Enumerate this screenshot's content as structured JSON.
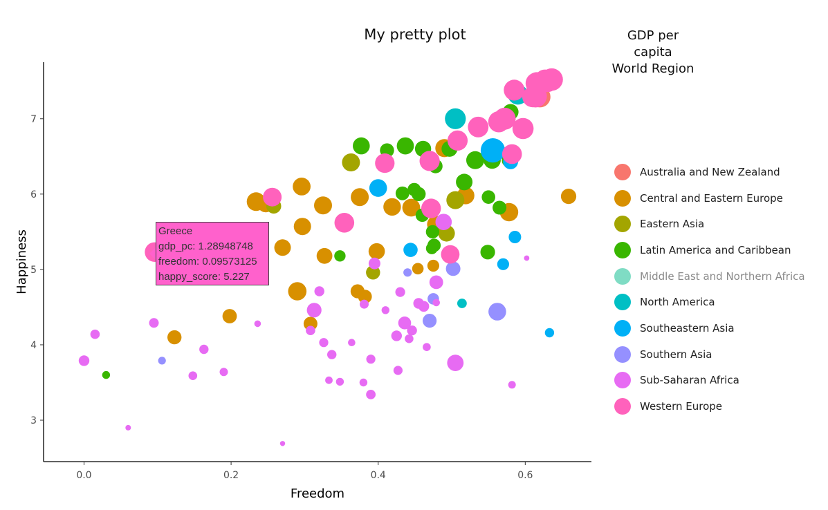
{
  "chart_data": {
    "type": "scatter",
    "title": "My pretty plot",
    "xlabel": "Freedom",
    "ylabel": "Happiness",
    "xlim": [
      -0.055,
      0.69
    ],
    "ylim": [
      2.45,
      7.75
    ],
    "x_ticks": [
      "0.0",
      "0.2",
      "0.4",
      "0.6"
    ],
    "x_tick_values": [
      0,
      0.2,
      0.4,
      0.6
    ],
    "y_ticks": [
      "3",
      "4",
      "5",
      "6",
      "7"
    ],
    "y_tick_values": [
      3,
      4,
      5,
      6,
      7
    ],
    "grid": false,
    "size_variable": "GDP per capita",
    "color_variable": "World Region",
    "legend": {
      "title_line1": "GDP per capita",
      "title_line2": "World Region",
      "placement": "right"
    },
    "series": [
      {
        "name": "Australia and New Zealand",
        "color": "#f8766d",
        "points": [
          [
            0.62,
            7.29,
            1.41
          ],
          [
            0.614,
            7.33,
            1.33
          ]
        ]
      },
      {
        "name": "Central and Eastern Europe",
        "color": "#d89000",
        "points": [
          [
            0.234,
            5.9,
            1.2
          ],
          [
            0.247,
            5.87,
            1.05
          ],
          [
            0.296,
            6.1,
            1.13
          ],
          [
            0.297,
            5.57,
            1.08
          ],
          [
            0.325,
            5.85,
            1.14
          ],
          [
            0.327,
            5.18,
            0.95
          ],
          [
            0.375,
            5.96,
            1.14
          ],
          [
            0.372,
            4.71,
            0.79
          ],
          [
            0.398,
            5.24,
            1.0
          ],
          [
            0.419,
            5.83,
            1.11
          ],
          [
            0.445,
            5.82,
            1.13
          ],
          [
            0.49,
            6.61,
            1.16
          ],
          [
            0.519,
            5.98,
            1.1
          ],
          [
            0.478,
            5.6,
            1.05
          ],
          [
            0.475,
            5.05,
            0.62
          ],
          [
            0.454,
            5.01,
            0.58
          ],
          [
            0.27,
            5.29,
            1.03
          ],
          [
            0.29,
            4.71,
            1.18
          ],
          [
            0.308,
            4.28,
            0.78
          ],
          [
            0.198,
            4.38,
            0.83
          ],
          [
            0.123,
            4.1,
            0.81
          ],
          [
            0.382,
            4.64,
            0.78
          ],
          [
            0.578,
            5.76,
            1.18
          ],
          [
            0.659,
            5.97,
            0.92
          ]
        ]
      },
      {
        "name": "Eastern Asia",
        "color": "#a3a500",
        "points": [
          [
            0.258,
            5.84,
            0.88
          ],
          [
            0.363,
            6.42,
            1.15
          ],
          [
            0.393,
            4.96,
            0.81
          ],
          [
            0.493,
            5.48,
            1.03
          ],
          [
            0.505,
            5.92,
            1.15
          ]
        ]
      },
      {
        "name": "Latin America and Caribbean",
        "color": "#39b600",
        "points": [
          [
            0.377,
            6.64,
            1.06
          ],
          [
            0.412,
            6.58,
            0.81
          ],
          [
            0.437,
            6.64,
            1.07
          ],
          [
            0.461,
            6.6,
            0.99
          ],
          [
            0.497,
            6.6,
            0.96
          ],
          [
            0.478,
            6.37,
            0.81
          ],
          [
            0.532,
            6.45,
            1.15
          ],
          [
            0.555,
            6.45,
            1.07
          ],
          [
            0.517,
            6.16,
            1.03
          ],
          [
            0.578,
            6.45,
            0.84
          ],
          [
            0.58,
            7.09,
            0.96
          ],
          [
            0.55,
            5.96,
            0.76
          ],
          [
            0.565,
            5.82,
            0.78
          ],
          [
            0.449,
            6.06,
            0.73
          ],
          [
            0.455,
            6.0,
            0.81
          ],
          [
            0.433,
            6.01,
            0.77
          ],
          [
            0.46,
            5.72,
            0.75
          ],
          [
            0.474,
            5.5,
            0.75
          ],
          [
            0.476,
            5.32,
            0.74
          ],
          [
            0.473,
            5.28,
            0.6
          ],
          [
            0.549,
            5.23,
            0.85
          ],
          [
            0.348,
            5.18,
            0.57
          ],
          [
            0.03,
            3.6,
            0.26
          ]
        ]
      },
      {
        "name": "North America",
        "color": "#00bfc4",
        "points": [
          [
            0.505,
            7.0,
            1.4
          ],
          [
            0.59,
            7.32,
            1.33
          ],
          [
            0.514,
            4.55,
            0.41
          ]
        ]
      },
      {
        "name": "Southeastern Asia",
        "color": "#00b0f6",
        "points": [
          [
            0.4,
            6.08,
            1.12
          ],
          [
            0.556,
            6.58,
            1.7
          ],
          [
            0.58,
            6.43,
            0.89
          ],
          [
            0.586,
            5.43,
            0.66
          ],
          [
            0.57,
            5.07,
            0.61
          ],
          [
            0.444,
            5.26,
            0.82
          ],
          [
            0.633,
            4.16,
            0.38
          ]
        ]
      },
      {
        "name": "Southern Asia",
        "color": "#9590ff",
        "points": [
          [
            0.106,
            3.79,
            0.25
          ],
          [
            0.44,
            4.96,
            0.31
          ],
          [
            0.47,
            4.32,
            0.79
          ],
          [
            0.475,
            4.61,
            0.58
          ],
          [
            0.562,
            4.44,
            1.12
          ],
          [
            0.502,
            5.01,
            0.84
          ]
        ]
      },
      {
        "name": "Sub-Saharan Africa",
        "color": "#e76bf3",
        "points": [
          [
            0.0,
            3.79,
            0.5
          ],
          [
            0.015,
            4.14,
            0.4
          ],
          [
            0.06,
            2.9,
            0.06
          ],
          [
            0.095,
            4.29,
            0.42
          ],
          [
            0.148,
            3.59,
            0.34
          ],
          [
            0.163,
            3.94,
            0.38
          ],
          [
            0.19,
            3.64,
            0.3
          ],
          [
            0.236,
            4.28,
            0.16
          ],
          [
            0.27,
            2.69,
            0.02
          ],
          [
            0.308,
            4.19,
            0.4
          ],
          [
            0.313,
            4.46,
            0.85
          ],
          [
            0.32,
            4.71,
            0.44
          ],
          [
            0.326,
            4.03,
            0.37
          ],
          [
            0.333,
            3.53,
            0.23
          ],
          [
            0.337,
            3.87,
            0.39
          ],
          [
            0.348,
            3.51,
            0.27
          ],
          [
            0.364,
            4.03,
            0.22
          ],
          [
            0.38,
            3.5,
            0.27
          ],
          [
            0.381,
            4.54,
            0.36
          ],
          [
            0.39,
            3.81,
            0.37
          ],
          [
            0.39,
            3.34,
            0.41
          ],
          [
            0.395,
            5.08,
            0.6
          ],
          [
            0.41,
            4.46,
            0.26
          ],
          [
            0.425,
            4.12,
            0.51
          ],
          [
            0.427,
            3.66,
            0.37
          ],
          [
            0.43,
            4.7,
            0.43
          ],
          [
            0.436,
            4.29,
            0.7
          ],
          [
            0.442,
            4.08,
            0.34
          ],
          [
            0.446,
            4.19,
            0.45
          ],
          [
            0.455,
            4.55,
            0.5
          ],
          [
            0.462,
            4.51,
            0.52
          ],
          [
            0.466,
            3.97,
            0.28
          ],
          [
            0.479,
            4.56,
            0.22
          ],
          [
            0.479,
            4.83,
            0.77
          ],
          [
            0.489,
            5.63,
            1.0
          ],
          [
            0.505,
            3.76,
            1.01
          ],
          [
            0.582,
            3.47,
            0.24
          ],
          [
            0.602,
            5.15,
            0.05
          ]
        ]
      },
      {
        "name": "Western Europe",
        "color": "#ff62bc",
        "points": [
          [
            0.096,
            5.23,
            1.29
          ],
          [
            0.256,
            5.96,
            1.2
          ],
          [
            0.354,
            5.62,
            1.3
          ],
          [
            0.409,
            6.41,
            1.28
          ],
          [
            0.47,
            6.44,
            1.34
          ],
          [
            0.472,
            5.81,
            1.29
          ],
          [
            0.498,
            5.2,
            1.19
          ],
          [
            0.508,
            6.71,
            1.34
          ],
          [
            0.536,
            6.89,
            1.37
          ],
          [
            0.564,
            6.96,
            1.42
          ],
          [
            0.572,
            7.0,
            1.49
          ],
          [
            0.582,
            6.53,
            1.3
          ],
          [
            0.597,
            6.87,
            1.42
          ],
          [
            0.585,
            7.38,
            1.4
          ],
          [
            0.61,
            7.29,
            1.38
          ],
          [
            0.615,
            7.47,
            1.45
          ],
          [
            0.627,
            7.51,
            1.46
          ],
          [
            0.636,
            7.52,
            1.53
          ],
          [
            0.616,
            7.48,
            1.39
          ],
          [
            0.614,
            7.3,
            1.56
          ],
          [
            0.63,
            7.5,
            1.51
          ]
        ]
      }
    ],
    "tooltip": {
      "country": "Greece",
      "gdp_line": "gdp_pc: 1.28948748",
      "freedom_line": "freedom: 0.09573125",
      "happy_line": "happy_score: 5.227",
      "color": "#ff61cc"
    }
  }
}
